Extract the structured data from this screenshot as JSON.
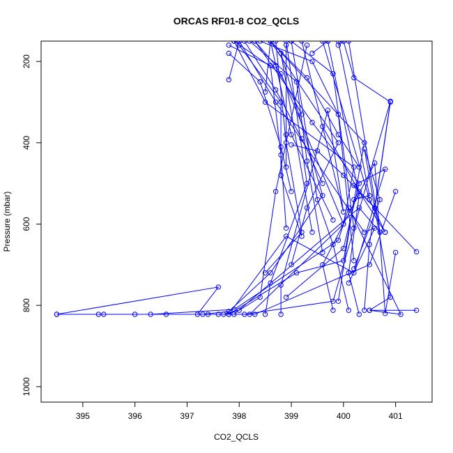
{
  "chart_data": {
    "type": "line",
    "title": "ORCAS RF01-8 CO2_QCLS",
    "xlabel": "CO2_QCLS",
    "ylabel": "Pressure (mbar)",
    "xlim": [
      394.2,
      401.7
    ],
    "ylim": [
      1038,
      150
    ],
    "y_inverted": true,
    "xticks": [
      395,
      396,
      397,
      398,
      399,
      400,
      401
    ],
    "yticks": [
      200,
      400,
      600,
      800,
      1000
    ],
    "series_color": "#0000ff",
    "marker": "open-circle",
    "series": [
      {
        "points": [
          [
            394.5,
            822
          ],
          [
            397.4,
            822
          ],
          [
            398.3,
            822
          ],
          [
            400.5,
            700
          ],
          [
            401.0,
            520
          ]
        ]
      },
      {
        "points": [
          [
            395.3,
            822
          ],
          [
            398.1,
            822
          ],
          [
            399.8,
            790
          ],
          [
            400.9,
            298
          ],
          [
            400.6,
            560
          ]
        ]
      },
      {
        "points": [
          [
            395.4,
            822
          ],
          [
            397.2,
            822
          ],
          [
            397.6,
            755
          ],
          [
            394.5,
            822
          ]
        ]
      },
      {
        "points": [
          [
            396.0,
            822
          ],
          [
            397.8,
            822
          ],
          [
            398.9,
            630
          ],
          [
            400.2,
            720
          ],
          [
            400.8,
            465
          ],
          [
            400.2,
            505
          ],
          [
            401.4,
            668
          ]
        ]
      },
      {
        "points": [
          [
            396.3,
            822
          ],
          [
            397.9,
            810
          ],
          [
            399.9,
            640
          ],
          [
            400.1,
            560
          ],
          [
            401.1,
            822
          ],
          [
            400.5,
            812
          ],
          [
            401.4,
            812
          ]
        ]
      },
      {
        "points": [
          [
            396.6,
            822
          ],
          [
            397.7,
            822
          ],
          [
            398.0,
            812
          ],
          [
            398.4,
            780
          ],
          [
            398.7,
            520
          ],
          [
            399.3,
            160
          ]
        ]
      },
      {
        "points": [
          [
            397.3,
            822
          ],
          [
            397.8,
            815
          ],
          [
            398.6,
            720
          ],
          [
            399.6,
            530
          ],
          [
            398.8,
            180
          ],
          [
            399.4,
            620
          ]
        ]
      },
      {
        "points": [
          [
            397.6,
            822
          ],
          [
            397.9,
            822
          ],
          [
            400.3,
            560
          ],
          [
            400.7,
            620
          ],
          [
            400.1,
            150
          ]
        ]
      },
      {
        "points": [
          [
            397.8,
            822
          ],
          [
            399.1,
            720
          ],
          [
            400.0,
            690
          ],
          [
            400.4,
            400
          ],
          [
            398.6,
            150
          ]
        ]
      },
      {
        "points": [
          [
            398.2,
            822
          ],
          [
            400.0,
            600
          ],
          [
            400.2,
            460
          ],
          [
            398.5,
            300
          ],
          [
            397.9,
            150
          ]
        ]
      },
      {
        "points": [
          [
            398.5,
            822
          ],
          [
            398.6,
            745
          ],
          [
            399.3,
            500
          ],
          [
            398.9,
            150
          ]
        ]
      },
      {
        "points": [
          [
            398.8,
            822
          ],
          [
            398.8,
            750
          ],
          [
            399.7,
            320
          ],
          [
            400.0,
            570
          ],
          [
            399.2,
            150
          ]
        ]
      },
      {
        "points": [
          [
            400.3,
            822
          ],
          [
            400.1,
            720
          ],
          [
            400.3,
            530
          ],
          [
            399.7,
            150
          ]
        ]
      },
      {
        "points": [
          [
            400.4,
            812
          ],
          [
            400.5,
            650
          ],
          [
            400.9,
            300
          ],
          [
            400.2,
            240
          ],
          [
            400.0,
            150
          ]
        ]
      },
      {
        "points": [
          [
            400.1,
            812
          ],
          [
            399.8,
            650
          ],
          [
            399.5,
            540
          ],
          [
            399.0,
            150
          ]
        ]
      },
      {
        "points": [
          [
            399.8,
            812
          ],
          [
            399.6,
            700
          ],
          [
            400.6,
            450
          ],
          [
            400.8,
            820
          ],
          [
            401.0,
            670
          ]
        ]
      },
      {
        "points": [
          [
            400.5,
            812
          ],
          [
            400.9,
            780
          ],
          [
            400.4,
            415
          ],
          [
            400.7,
            540
          ],
          [
            400.2,
            710
          ]
        ]
      },
      {
        "points": [
          [
            399.9,
            790
          ],
          [
            400.2,
            540
          ],
          [
            400.5,
            530
          ],
          [
            399.9,
            150
          ]
        ]
      },
      {
        "points": [
          [
            398.9,
            780
          ],
          [
            400.0,
            660
          ],
          [
            400.3,
            500
          ],
          [
            399.4,
            350
          ],
          [
            398.3,
            150
          ]
        ]
      },
      {
        "points": [
          [
            400.1,
            745
          ],
          [
            400.6,
            610
          ],
          [
            400.4,
            620
          ],
          [
            398.7,
            300
          ],
          [
            398.0,
            150
          ]
        ]
      },
      {
        "points": [
          [
            398.5,
            720
          ],
          [
            399.2,
            620
          ],
          [
            398.9,
            400
          ],
          [
            398.7,
            150
          ]
        ]
      },
      {
        "points": [
          [
            399.0,
            700
          ],
          [
            399.3,
            560
          ],
          [
            399.9,
            400
          ],
          [
            398.6,
            150
          ]
        ]
      },
      {
        "points": [
          [
            400.2,
            690
          ],
          [
            399.9,
            330
          ],
          [
            399.4,
            200
          ],
          [
            398.4,
            150
          ]
        ]
      },
      {
        "points": [
          [
            400.8,
            620
          ],
          [
            400.5,
            540
          ],
          [
            399.6,
            150
          ]
        ]
      },
      {
        "points": [
          [
            399.6,
            670
          ],
          [
            399.3,
            445
          ],
          [
            399.1,
            250
          ],
          [
            398.2,
            150
          ]
        ]
      },
      {
        "points": [
          [
            400.0,
            600
          ],
          [
            398.8,
            230
          ],
          [
            397.9,
            150
          ]
        ]
      },
      {
        "points": [
          [
            399.2,
            630
          ],
          [
            398.8,
            480
          ],
          [
            398.8,
            300
          ],
          [
            398.0,
            160
          ]
        ]
      },
      {
        "points": [
          [
            398.9,
            610
          ],
          [
            398.8,
            430
          ],
          [
            398.6,
            210
          ],
          [
            397.8,
            160
          ]
        ]
      },
      {
        "points": [
          [
            400.2,
            610
          ],
          [
            399.8,
            230
          ],
          [
            399.0,
            150
          ]
        ]
      },
      {
        "points": [
          [
            399.8,
            590
          ],
          [
            399.0,
            380
          ],
          [
            398.6,
            150
          ]
        ]
      },
      {
        "points": [
          [
            399.0,
            520
          ],
          [
            398.8,
            410
          ],
          [
            398.4,
            250
          ],
          [
            397.8,
            180
          ]
        ]
      },
      {
        "points": [
          [
            399.6,
            500
          ],
          [
            399.2,
            390
          ],
          [
            398.7,
            270
          ],
          [
            398.1,
            150
          ]
        ]
      },
      {
        "points": [
          [
            400.3,
            460
          ],
          [
            399.9,
            380
          ],
          [
            399.3,
            240
          ],
          [
            398.6,
            150
          ]
        ]
      },
      {
        "points": [
          [
            399.2,
            330
          ],
          [
            398.7,
            210
          ],
          [
            398.3,
            150
          ]
        ]
      },
      {
        "points": [
          [
            398.9,
            460
          ],
          [
            398.9,
            380
          ],
          [
            398.9,
            160
          ]
        ]
      },
      {
        "points": [
          [
            397.8,
            245
          ],
          [
            398.0,
            150
          ]
        ]
      },
      {
        "points": [
          [
            399.0,
            405
          ],
          [
            399.5,
            420
          ],
          [
            400.0,
            480
          ],
          [
            400.6,
            560
          ]
        ]
      },
      {
        "points": [
          [
            399.6,
            360
          ],
          [
            400.3,
            520
          ],
          [
            400.8,
            620
          ]
        ]
      },
      {
        "points": [
          [
            398.5,
            275
          ],
          [
            398.6,
            150
          ]
        ]
      },
      {
        "points": [
          [
            399.4,
            180
          ],
          [
            399.7,
            150
          ]
        ]
      },
      {
        "points": [
          [
            399.9,
            160
          ],
          [
            400.0,
            150
          ]
        ]
      }
    ]
  }
}
